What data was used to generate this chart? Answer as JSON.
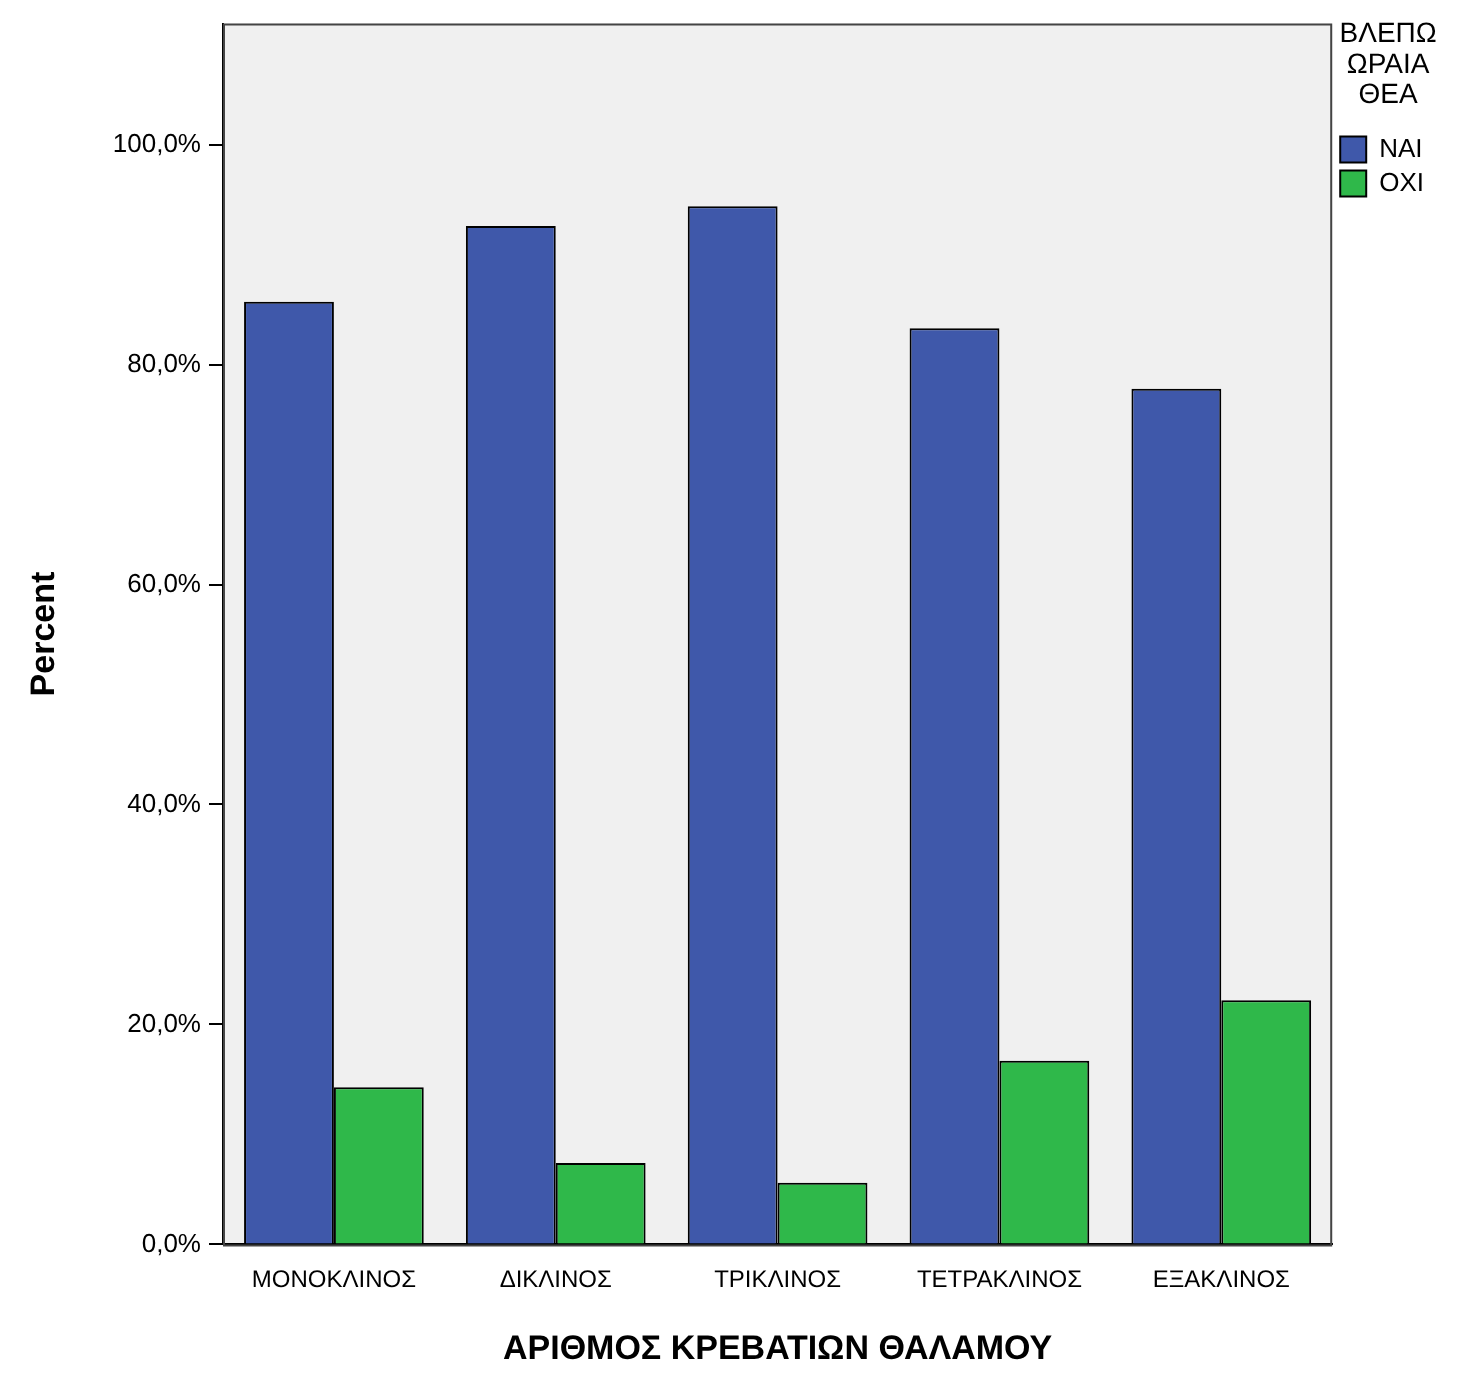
{
  "chart_data": {
    "type": "bar",
    "xlabel": "ΑΡΙΘΜΟΣ ΚΡΕΒΑΤΙΩΝ ΘΑΛΑΜΟΥ",
    "ylabel": "Percent",
    "legend_title": "ΒΛΕΠΩ ΩΡΑΙΑ ΘΕΑ",
    "legend": "top right",
    "categories": [
      "ΜΟΝΟΚΛΙΝΟΣ",
      "ΔΙΚΛΙΝΟΣ",
      "ΤΡΙΚΛΙΝΟΣ",
      "ΤΕΤΡΑΚΛΙΝΟΣ",
      "ΕΞΑΚΛΙΝΟΣ"
    ],
    "series": [
      {
        "name": "ΝΑΙ",
        "color": "#3f58aa",
        "values": [
          85.7,
          92.6,
          94.4,
          83.3,
          77.8
        ]
      },
      {
        "name": "ΟΧΙ",
        "color": "#2fb84a",
        "values": [
          14.3,
          7.4,
          5.6,
          16.7,
          22.2
        ]
      }
    ],
    "ylim": [
      0,
      111
    ],
    "yticks": [
      {
        "value": 0,
        "label": "0,0%"
      },
      {
        "value": 20,
        "label": "20,0%"
      },
      {
        "value": 40,
        "label": "40,0%"
      },
      {
        "value": 60,
        "label": "60,0%"
      },
      {
        "value": 80,
        "label": "80,0%"
      },
      {
        "value": 100,
        "label": "100,0%"
      }
    ],
    "grid": false
  }
}
